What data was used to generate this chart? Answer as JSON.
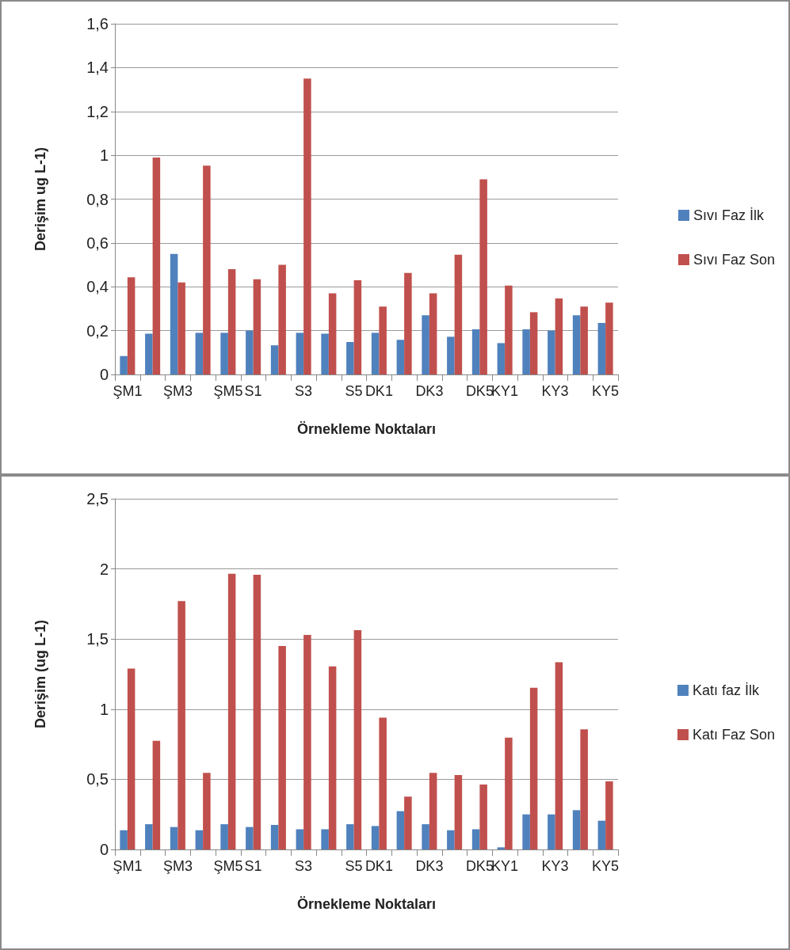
{
  "chart_data": [
    {
      "type": "bar",
      "xlabel": "Örnekleme Noktaları",
      "ylabel": "Derişim ug L-1)",
      "categories": [
        "ŞM1",
        null,
        "ŞM3",
        null,
        "ŞM5",
        "S1",
        null,
        "S3",
        null,
        "S5",
        "DK1",
        null,
        "DK3",
        null,
        "DK5",
        "KY1",
        null,
        "KY3",
        null,
        "KY5"
      ],
      "series": [
        {
          "name": "Sıvı Faz İlk",
          "color": "#4f81bd",
          "values": [
            0.084,
            0.186,
            0.55,
            0.19,
            0.19,
            0.2,
            0.133,
            0.19,
            0.186,
            0.148,
            0.19,
            0.158,
            0.27,
            0.172,
            0.206,
            0.143,
            0.206,
            0.2,
            0.27,
            0.235
          ]
        },
        {
          "name": "Sıvı Faz Son",
          "color": "#c0504d",
          "values": [
            0.443,
            0.99,
            0.42,
            0.953,
            0.48,
            0.434,
            0.5,
            1.35,
            0.37,
            0.43,
            0.31,
            0.463,
            0.37,
            0.546,
            0.89,
            0.405,
            0.284,
            0.347,
            0.31,
            0.328
          ]
        }
      ],
      "ylim": [
        0,
        1.6
      ],
      "yticks": [
        0,
        {
          "value": 0.2,
          "label": "0,2"
        },
        {
          "value": 0.4,
          "label": "0,4"
        },
        {
          "value": 0.6,
          "label": "0,6"
        },
        {
          "value": 0.8,
          "label": "0,8"
        },
        1,
        {
          "value": 1.2,
          "label": "1,2"
        },
        {
          "value": 1.4,
          "label": "1,4"
        },
        {
          "value": 1.6,
          "label": "1,6"
        }
      ],
      "grid": "y",
      "legend": "right"
    },
    {
      "type": "bar",
      "xlabel": "Örnekleme Noktaları",
      "ylabel": "Derişim (ug L-1)",
      "categories": [
        "ŞM1",
        null,
        "ŞM3",
        null,
        "ŞM5",
        "S1",
        null,
        "S3",
        null,
        "S5",
        "DK1",
        null,
        "DK3",
        null,
        "DK5",
        "KY1",
        null,
        "KY3",
        null,
        "KY5"
      ],
      "series": [
        {
          "name": "Katı faz İlk",
          "color": "#4f81bd",
          "values": [
            0.137,
            0.18,
            0.16,
            0.137,
            0.18,
            0.16,
            0.175,
            0.144,
            0.144,
            0.18,
            0.167,
            0.273,
            0.18,
            0.137,
            0.144,
            0.015,
            0.25,
            0.25,
            0.28,
            0.205
          ]
        },
        {
          "name": "Katı Faz Son",
          "color": "#c0504d",
          "values": [
            1.29,
            0.774,
            1.77,
            0.546,
            1.965,
            1.958,
            1.45,
            1.53,
            1.305,
            1.563,
            0.94,
            0.376,
            0.546,
            0.531,
            0.463,
            0.797,
            1.153,
            1.335,
            0.857,
            0.486
          ]
        }
      ],
      "ylim": [
        0,
        2.5
      ],
      "yticks": [
        0,
        {
          "value": 0.5,
          "label": "0,5"
        },
        1,
        {
          "value": 1.5,
          "label": "1,5"
        },
        2,
        {
          "value": 2.5,
          "label": "2,5"
        }
      ],
      "grid": "y",
      "legend": "right"
    }
  ]
}
